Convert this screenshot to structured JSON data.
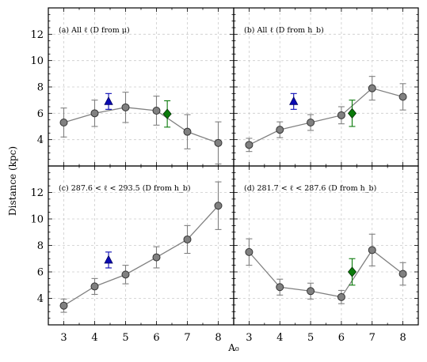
{
  "chart_data": {
    "type": "scatter",
    "layout": "2x2 shared axes",
    "xlabel": "A₀",
    "ylabel": "Distance (kpc)",
    "xlim": [
      2.5,
      8.5
    ],
    "ylim": [
      2,
      14
    ],
    "xticks": [
      3,
      4,
      5,
      6,
      7,
      8
    ],
    "yticks": [
      4,
      6,
      8,
      10,
      12
    ],
    "grid": true,
    "colors": {
      "main": "#808080",
      "main_edge": "#333333",
      "triangle": "#0a0ab4",
      "diamond": "#0a7a0a",
      "grid": "#cccccc"
    },
    "panels": [
      {
        "label": "(a) All ℓ (D from μ)",
        "main": {
          "x": [
            3,
            4,
            5,
            6,
            7,
            8
          ],
          "y": [
            5.3,
            6.0,
            6.45,
            6.2,
            4.6,
            3.75
          ],
          "err": [
            1.1,
            1.0,
            1.15,
            1.1,
            1.3,
            1.6
          ]
        },
        "triangle": {
          "x": 4.45,
          "y": 6.9,
          "err": 0.6
        },
        "diamond": {
          "x": 6.35,
          "y": 5.95,
          "err": 1.0
        }
      },
      {
        "label": "(b) All ℓ (D from h_b)",
        "main": {
          "x": [
            3,
            4,
            5,
            6,
            7,
            8
          ],
          "y": [
            3.6,
            4.75,
            5.3,
            5.85,
            7.9,
            7.25
          ],
          "err": [
            0.5,
            0.6,
            0.6,
            0.65,
            0.9,
            1.0
          ]
        },
        "triangle": {
          "x": 4.45,
          "y": 6.9,
          "err": 0.6
        },
        "diamond": {
          "x": 6.35,
          "y": 6.0,
          "err": 1.0
        }
      },
      {
        "label": "(c) 287.6 < ℓ < 293.5 (D from h_b)",
        "main": {
          "x": [
            3,
            4,
            5,
            6,
            7,
            8
          ],
          "y": [
            3.45,
            4.9,
            5.8,
            7.1,
            8.45,
            11.0
          ],
          "err": [
            0.5,
            0.6,
            0.7,
            0.8,
            1.05,
            1.8
          ]
        },
        "triangle": {
          "x": 4.45,
          "y": 6.9,
          "err": 0.6
        }
      },
      {
        "label": "(d) 281.7 < ℓ < 287.6 (D from h_b)",
        "main": {
          "x": [
            3,
            4,
            5,
            6,
            7,
            8
          ],
          "y": [
            7.5,
            4.85,
            4.55,
            4.1,
            7.65,
            5.85
          ],
          "err": [
            1.0,
            0.6,
            0.6,
            0.5,
            1.2,
            0.85
          ]
        },
        "diamond": {
          "x": 6.35,
          "y": 6.0,
          "err": 1.0
        }
      }
    ]
  }
}
